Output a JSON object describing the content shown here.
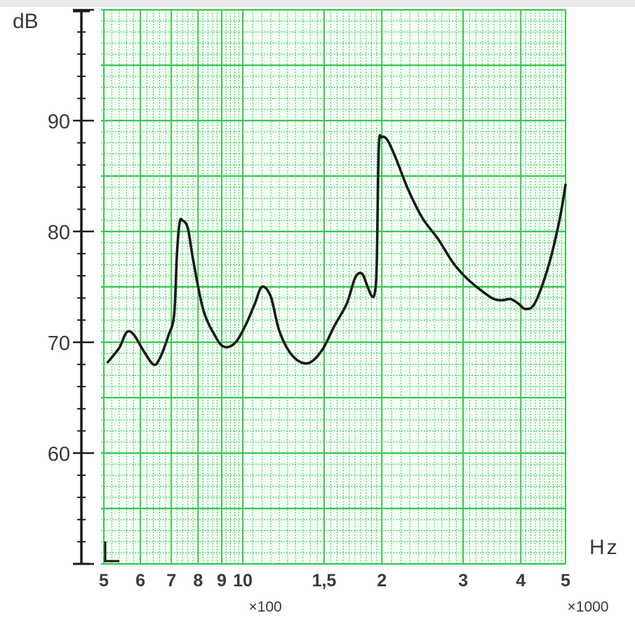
{
  "chart_data": {
    "type": "line",
    "title": "",
    "ylabel": "dB",
    "xlabel": "Hz",
    "x_scale": "log",
    "xlim": [
      500,
      5000
    ],
    "ylim": [
      50,
      100
    ],
    "grid": true,
    "colors": {
      "grid": "#35c94e",
      "background": "#ffffff",
      "line": "#1a1a1a",
      "axis": "#1a1a1a"
    },
    "y_ticks": [
      {
        "value": 60,
        "label": "60"
      },
      {
        "value": 70,
        "label": "70"
      },
      {
        "value": 80,
        "label": "80"
      },
      {
        "value": 90,
        "label": "90"
      }
    ],
    "x_ticks": [
      {
        "value": 500,
        "label": "5"
      },
      {
        "value": 600,
        "label": "6"
      },
      {
        "value": 700,
        "label": "7"
      },
      {
        "value": 800,
        "label": "8"
      },
      {
        "value": 900,
        "label": "9"
      },
      {
        "value": 1000,
        "label": "10"
      },
      {
        "value": 1500,
        "label": "1,5"
      },
      {
        "value": 2000,
        "label": "2"
      },
      {
        "value": 3000,
        "label": "3"
      },
      {
        "value": 4000,
        "label": "4"
      },
      {
        "value": 5000,
        "label": "5"
      }
    ],
    "x_multipliers": [
      {
        "value": 1000,
        "label": "×100"
      },
      {
        "value": 5000,
        "label": "×1000"
      }
    ],
    "series": [
      {
        "x": [
          510,
          540,
          560,
          580,
          610,
          640,
          660,
          690,
          710,
          720,
          730,
          740,
          760,
          780,
          820,
          870,
          910,
          960,
          1010,
          1060,
          1100,
          1150,
          1200,
          1280,
          1380,
          1480,
          1580,
          1680,
          1750,
          1810,
          1860,
          1900,
          1930,
          1950,
          1970,
          2000,
          2060,
          2150,
          2280,
          2450,
          2650,
          2850,
          3050,
          3300,
          3500,
          3650,
          3800,
          3950,
          4100,
          4300,
          4600,
          4850,
          5000
        ],
        "y": [
          68.2,
          69.5,
          70.9,
          70.7,
          69.2,
          68.0,
          68.5,
          70.6,
          72.5,
          78.0,
          80.8,
          81.0,
          80.3,
          77.5,
          73.0,
          70.6,
          69.6,
          69.9,
          71.4,
          73.4,
          75.0,
          74.1,
          71.0,
          68.8,
          68.1,
          69.2,
          71.5,
          73.5,
          75.8,
          76.2,
          75.1,
          74.2,
          74.4,
          77.0,
          87.5,
          88.5,
          88.2,
          86.5,
          83.8,
          81.2,
          79.3,
          77.2,
          75.8,
          74.6,
          73.9,
          73.8,
          73.9,
          73.5,
          73.0,
          73.6,
          77.0,
          81.0,
          84.2
        ]
      }
    ]
  }
}
